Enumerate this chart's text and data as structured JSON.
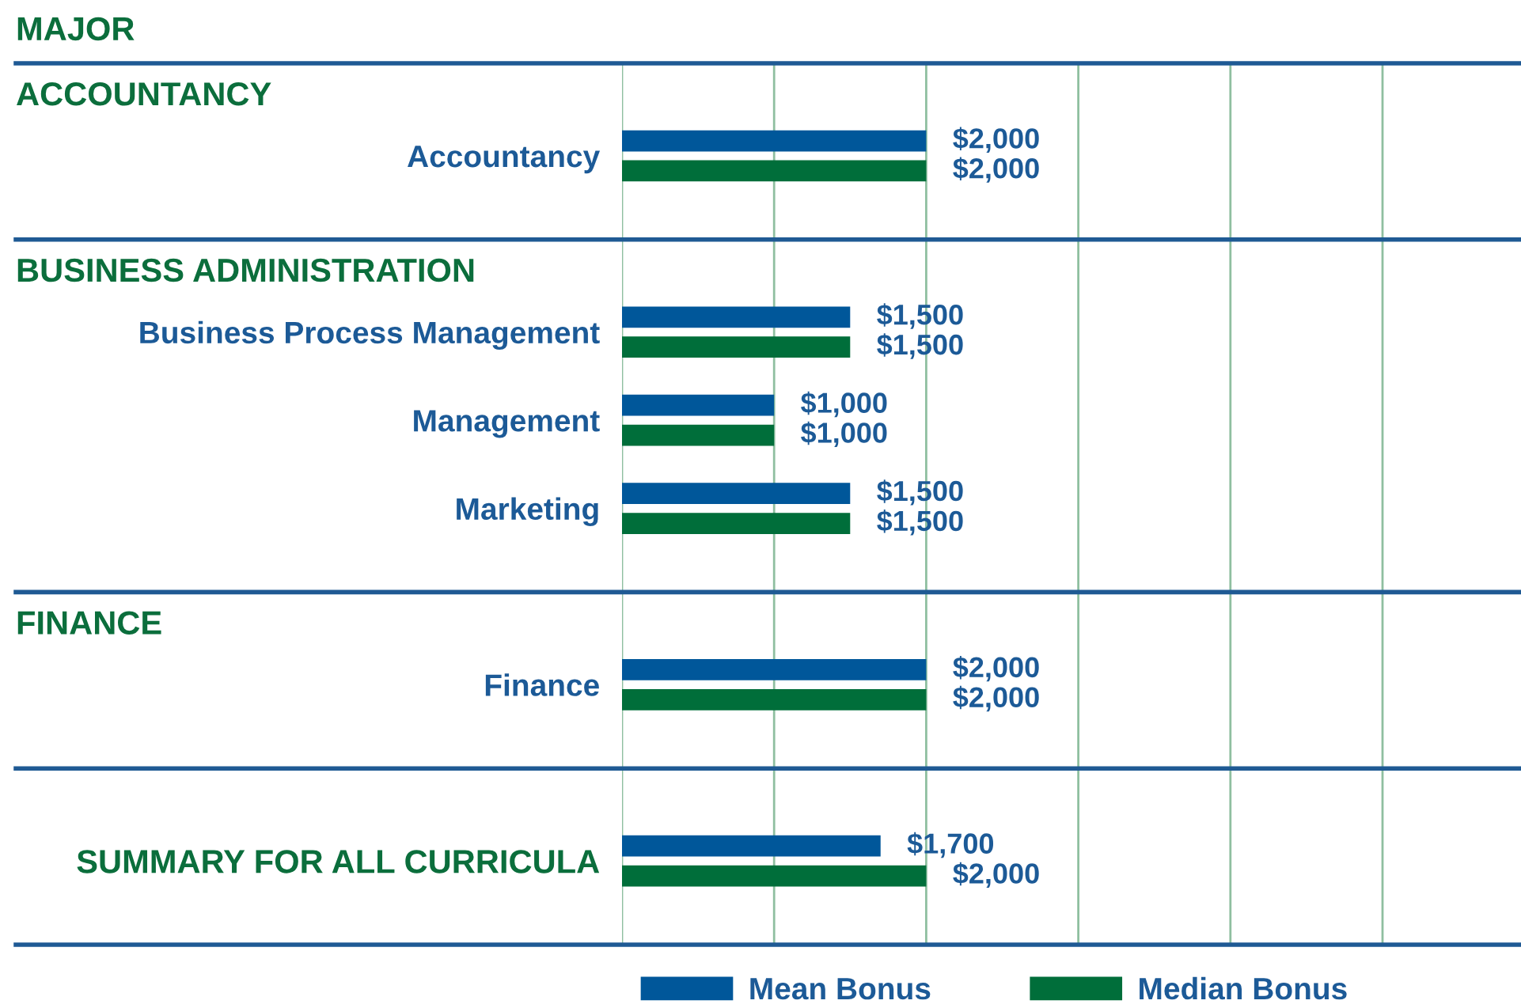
{
  "chart_data": {
    "type": "bar",
    "orientation": "horizontal",
    "categories": [
      "Accountancy",
      "Business Process Management",
      "Management",
      "Marketing",
      "Finance",
      "SUMMARY FOR ALL CURRICULA"
    ],
    "series": [
      {
        "name": "Mean Bonus",
        "color": "#00579a",
        "values": [
          2000,
          1500,
          1000,
          1500,
          2000,
          1700
        ],
        "value_labels": [
          "$2,000",
          "$1,500",
          "$1,000",
          "$1,500",
          "$2,000",
          "$1,700"
        ]
      },
      {
        "name": "Median Bonus",
        "color": "#006e3a",
        "values": [
          2000,
          1500,
          1000,
          1500,
          2000,
          2000
        ],
        "value_labels": [
          "$2,000",
          "$1,500",
          "$1,000",
          "$1,500",
          "$2,000",
          "$2,000"
        ]
      }
    ],
    "annotations": [
      "MAJOR",
      "ACCOUNTANCY",
      "BUSINESS ADMINISTRATION",
      "FINANCE"
    ],
    "xlim": [
      0,
      5900
    ],
    "xticks": [
      {
        "value": 0,
        "label": null
      },
      {
        "value": 1000,
        "label": null
      },
      {
        "value": 2000,
        "label": null
      },
      {
        "value": 3000,
        "label": null
      },
      {
        "value": 4000,
        "label": null
      },
      {
        "value": 5000,
        "label": null
      }
    ],
    "grid": "x",
    "tick_labels": "y",
    "legend": "bottom"
  }
}
